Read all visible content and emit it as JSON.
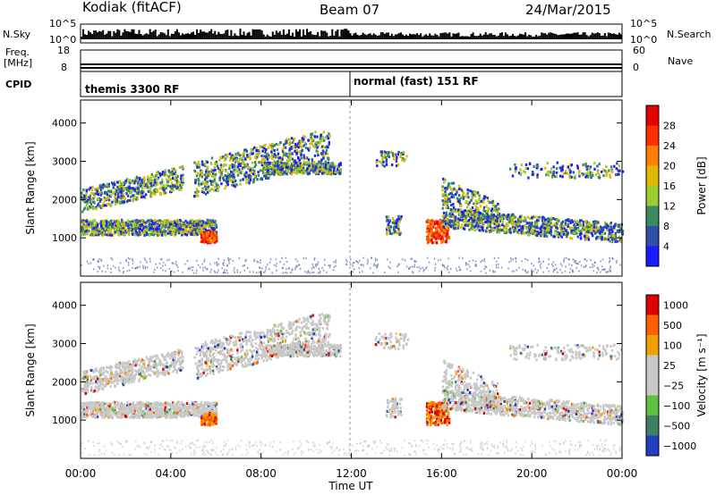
{
  "header": {
    "station": "Kodiak (fitACF)",
    "beam": "Beam 07",
    "date": "24/Mar/2015"
  },
  "top_panels": {
    "nsky_label": "N.Sky",
    "nsky_ticks": [
      "10^5",
      "10^0"
    ],
    "nsearch_label": "N.Search",
    "nsearch_ticks": [
      "10^5",
      "10^0"
    ],
    "freq_label": "Freq.",
    "freq_unit": "[MHz]",
    "freq_ticks": [
      "18",
      "8"
    ],
    "nave_label": "Nave",
    "nave_ticks": [
      "60",
      "0"
    ],
    "cpid_label": "CPID",
    "modes": [
      "themis 3300 RF",
      "normal (fast) 151 RF"
    ]
  },
  "chart_data": [
    {
      "type": "heatmap",
      "name": "power",
      "ylabel": "Slant Range [km]",
      "yticks": [
        1000,
        2000,
        3000,
        4000
      ],
      "ylim": [
        0,
        4600
      ],
      "colorbar_label": "Power [dB]",
      "colorbar_ticks": [
        4,
        8,
        12,
        16,
        20,
        24,
        28
      ],
      "colors": [
        "#1a1aff",
        "#2d4fa8",
        "#3b8a60",
        "#9acd32",
        "#e0b800",
        "#ff8000",
        "#ff3000",
        "#e60000"
      ]
    },
    {
      "type": "heatmap",
      "name": "velocity",
      "ylabel": "Slant Range [km]",
      "yticks": [
        1000,
        2000,
        3000,
        4000
      ],
      "ylim": [
        0,
        4600
      ],
      "colorbar_label": "Velocity [m s⁻¹]",
      "colorbar_ticks": [
        "1000",
        "500",
        "100",
        "25",
        "−25",
        "−100",
        "−500",
        "−1000"
      ],
      "colors": [
        "#2040c0",
        "#3e7f66",
        "#5fbf3f",
        "#c8c8c8",
        "#c8c8c8",
        "#f0a000",
        "#ff6000",
        "#e00000"
      ],
      "xlabel": "Time UT",
      "xticks": [
        "00:00",
        "04:00",
        "08:00",
        "12:00",
        "16:00",
        "20:00",
        "00:00"
      ]
    }
  ]
}
